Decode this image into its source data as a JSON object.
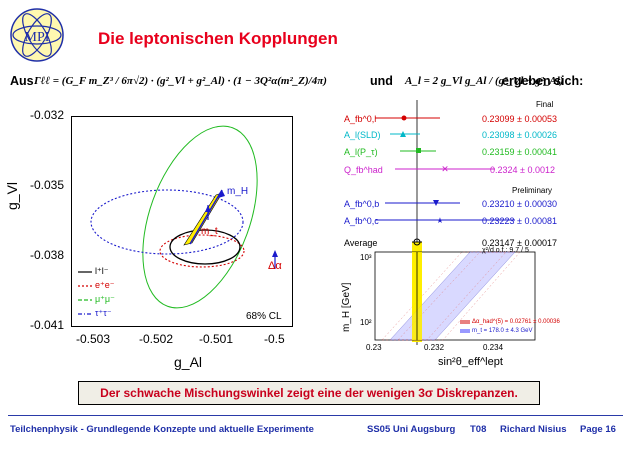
{
  "slide": {
    "logo_text": "MPI",
    "title": "Die leptonischen Kopplungen",
    "formula_intro": "Aus",
    "formula_gamma": "Γℓℓ = (G_F m_Z³ / 6π√2) · (g²_Vl + g²_Al) · (1 − 3Q²α(m²_Z)/4π)",
    "formula_and": "und",
    "formula_al": "A_l = 2 g_Vl g_Al / (g²_Vl + g²_Al)",
    "formula_result": "ergeben sich:",
    "callout": "Der schwache Mischungswinkel zeigt eine der wenigen 3σ Diskrepanzen."
  },
  "left_plot": {
    "y_ticks": [
      "-0.032",
      "-0.035",
      "-0.038",
      "-0.041"
    ],
    "x_ticks": [
      "-0.503",
      "-0.502",
      "-0.501",
      "-0.5"
    ],
    "xlabel": "g_Al",
    "ylabel": "g_Vl",
    "mh_label": "m_H",
    "mt_label": "m_t",
    "dalpha_label": "Δα",
    "cl_label": "68% CL",
    "legend": [
      {
        "label": "l⁺l⁻",
        "color": "#000000",
        "style": "solid"
      },
      {
        "label": "e⁺e⁻",
        "color": "#d40000",
        "style": "dotted"
      },
      {
        "label": "μ⁺μ⁻",
        "color": "#22bb22",
        "style": "dashed"
      },
      {
        "label": "τ⁺τ⁻",
        "color": "#1a1acc",
        "style": "dashdot"
      }
    ]
  },
  "right_panel": {
    "header_final": "Final",
    "header_prelim": "Preliminary",
    "rows": [
      {
        "label": "A_fb^0,l",
        "value": "0.23099 ± 0.00053",
        "color": "#d40000"
      },
      {
        "label": "A_l(SLD)",
        "value": "0.23098 ± 0.00026",
        "color": "#00b8c8"
      },
      {
        "label": "A_l(P_τ)",
        "value": "0.23159 ± 0.00041",
        "color": "#22bb22"
      },
      {
        "label": "Q_fb^had",
        "value": "0.2324 ± 0.0012",
        "color": "#cc22cc"
      },
      {
        "label": "A_fb^0,b",
        "value": "0.23210 ± 0.00030",
        "color": "#1a1acc"
      },
      {
        "label": "A_fb^0,c",
        "value": "0.23223 ± 0.00081",
        "color": "#1a1acc"
      },
      {
        "label": "Average",
        "value": "0.23147 ± 0.00017",
        "color": "#000000"
      }
    ],
    "chi2": "χ²/d.o.f.: 9.7 / 5",
    "y_ticks": [
      "10³",
      "10²"
    ],
    "x_ticks": [
      "0.23",
      "0.232",
      "0.234"
    ],
    "ylabel": "m_H [GeV]",
    "xlabel": "sin²θ_eff^lept",
    "legend_1": "Δα_had^(5) = 0.02761 ± 0.00036",
    "legend_2": "m_t = 178.0 ± 4.3 GeV"
  },
  "footer": {
    "course": "Teilchenphysik - Grundlegende Konzepte und aktuelle Experimente",
    "term": "SS05 Uni Augsburg",
    "code": "T08",
    "author": "Richard Nisius",
    "page": "Page 16"
  }
}
